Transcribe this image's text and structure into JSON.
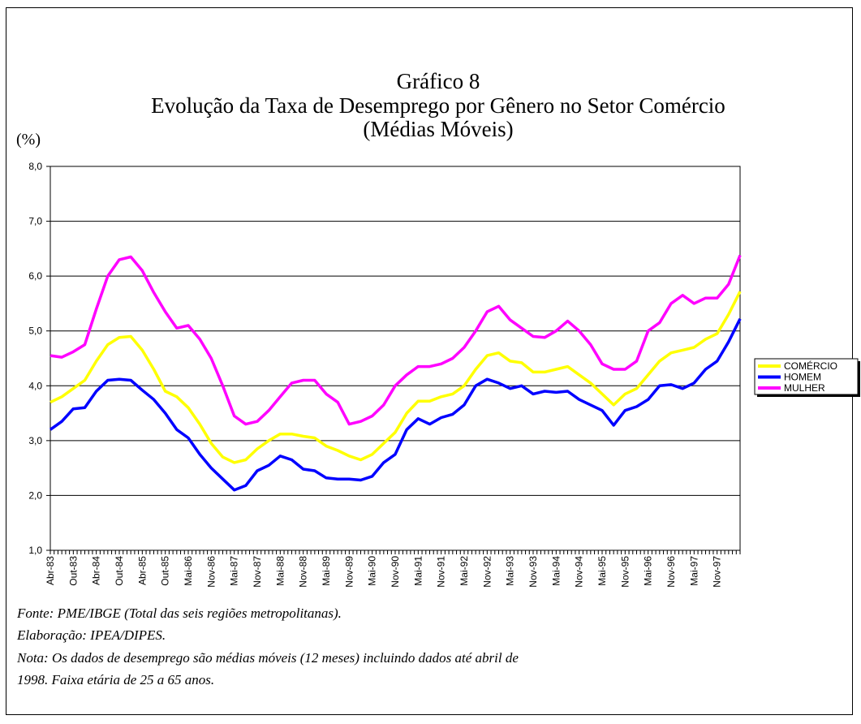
{
  "chart_data": {
    "type": "line",
    "title": "Gráfico 8",
    "subtitle": "Evolução da Taxa de Desemprego por Gênero no Setor Comércio",
    "subtitle2": "(Médias Móveis)",
    "y_label": "(%)",
    "categories": [
      "Abr-83",
      null,
      "Out-83",
      null,
      "Abr-84",
      null,
      "Out-84",
      null,
      "Abr-85",
      null,
      "Out-85",
      null,
      "Mai-86",
      null,
      "Nov-86",
      null,
      "Mai-87",
      null,
      "Nov-87",
      null,
      "Mai-88",
      null,
      "Nov-88",
      null,
      "Mai-89",
      null,
      "Nov-89",
      null,
      "Mai-90",
      null,
      "Nov-90",
      null,
      "Mai-91",
      null,
      "Nov-91",
      null,
      "Mai-92",
      null,
      "Nov-92",
      null,
      "Mai-93",
      null,
      "Nov-93",
      null,
      "Mai-94",
      null,
      "Nov-94",
      null,
      "Mai-95",
      null,
      "Nov-95",
      null,
      "Mai-96",
      null,
      "Nov-96",
      null,
      "Mai-97",
      null,
      "Nov-97",
      null,
      null
    ],
    "series": [
      {
        "name": "COMÉRCIO",
        "color": "#ffff00",
        "values": [
          3.7,
          3.8,
          3.95,
          4.1,
          4.45,
          4.75,
          4.88,
          4.9,
          4.65,
          4.3,
          3.9,
          3.8,
          3.6,
          3.3,
          2.95,
          2.7,
          2.6,
          2.65,
          2.85,
          3.0,
          3.12,
          3.12,
          3.08,
          3.05,
          2.9,
          2.82,
          2.72,
          2.65,
          2.75,
          2.95,
          3.15,
          3.5,
          3.72,
          3.72,
          3.8,
          3.85,
          4.0,
          4.3,
          4.55,
          4.6,
          4.45,
          4.42,
          4.25,
          4.25,
          4.3,
          4.35,
          4.2,
          4.05,
          3.85,
          3.65,
          3.85,
          3.95,
          4.2,
          4.45,
          4.6,
          4.65,
          4.7,
          4.85,
          4.95,
          5.3,
          5.72
        ]
      },
      {
        "name": "HOMEM",
        "color": "#0000ff",
        "values": [
          3.2,
          3.35,
          3.58,
          3.6,
          3.9,
          4.1,
          4.12,
          4.1,
          3.92,
          3.75,
          3.5,
          3.2,
          3.05,
          2.75,
          2.5,
          2.3,
          2.1,
          2.18,
          2.45,
          2.55,
          2.72,
          2.65,
          2.48,
          2.45,
          2.32,
          2.3,
          2.3,
          2.28,
          2.35,
          2.6,
          2.75,
          3.2,
          3.4,
          3.3,
          3.42,
          3.48,
          3.65,
          4.0,
          4.12,
          4.05,
          3.95,
          4.0,
          3.85,
          3.9,
          3.88,
          3.9,
          3.75,
          3.65,
          3.55,
          3.28,
          3.55,
          3.62,
          3.75,
          4.0,
          4.02,
          3.95,
          4.05,
          4.3,
          4.45,
          4.8,
          5.22
        ]
      },
      {
        "name": "MULHER",
        "color": "#ff00ff",
        "values": [
          4.55,
          4.52,
          4.62,
          4.75,
          5.4,
          6.0,
          6.3,
          6.35,
          6.1,
          5.7,
          5.35,
          5.05,
          5.1,
          4.85,
          4.5,
          4.0,
          3.45,
          3.3,
          3.35,
          3.55,
          3.8,
          4.05,
          4.1,
          4.1,
          3.85,
          3.7,
          3.3,
          3.35,
          3.45,
          3.65,
          4.0,
          4.2,
          4.35,
          4.35,
          4.4,
          4.5,
          4.7,
          5.0,
          5.35,
          5.45,
          5.2,
          5.05,
          4.9,
          4.88,
          5.0,
          5.18,
          5.0,
          4.75,
          4.4,
          4.3,
          4.3,
          4.45,
          5.0,
          5.15,
          5.5,
          5.65,
          5.5,
          5.6,
          5.6,
          5.85,
          6.38
        ]
      }
    ],
    "ylim": [
      1,
      8
    ],
    "yticks": [
      {
        "value": 1,
        "label": "1,0"
      },
      {
        "value": 2,
        "label": "2,0"
      },
      {
        "value": 3,
        "label": "3,0"
      },
      {
        "value": 4,
        "label": "4,0"
      },
      {
        "value": 5,
        "label": "5,0"
      },
      {
        "value": 6,
        "label": "6,0"
      },
      {
        "value": 7,
        "label": "7,0"
      },
      {
        "value": 8,
        "label": "8,0"
      }
    ],
    "grid": true,
    "legend": "right",
    "notes": [
      "Fonte: PME/IBGE (Total das seis regiões metropolitanas).",
      "Elaboração: IPEA/DIPES.",
      "Nota: Os dados de desemprego são médias móveis (12 meses) incluindo dados até abril de",
      "1998. Faixa etária de 25 a 65 anos."
    ]
  }
}
